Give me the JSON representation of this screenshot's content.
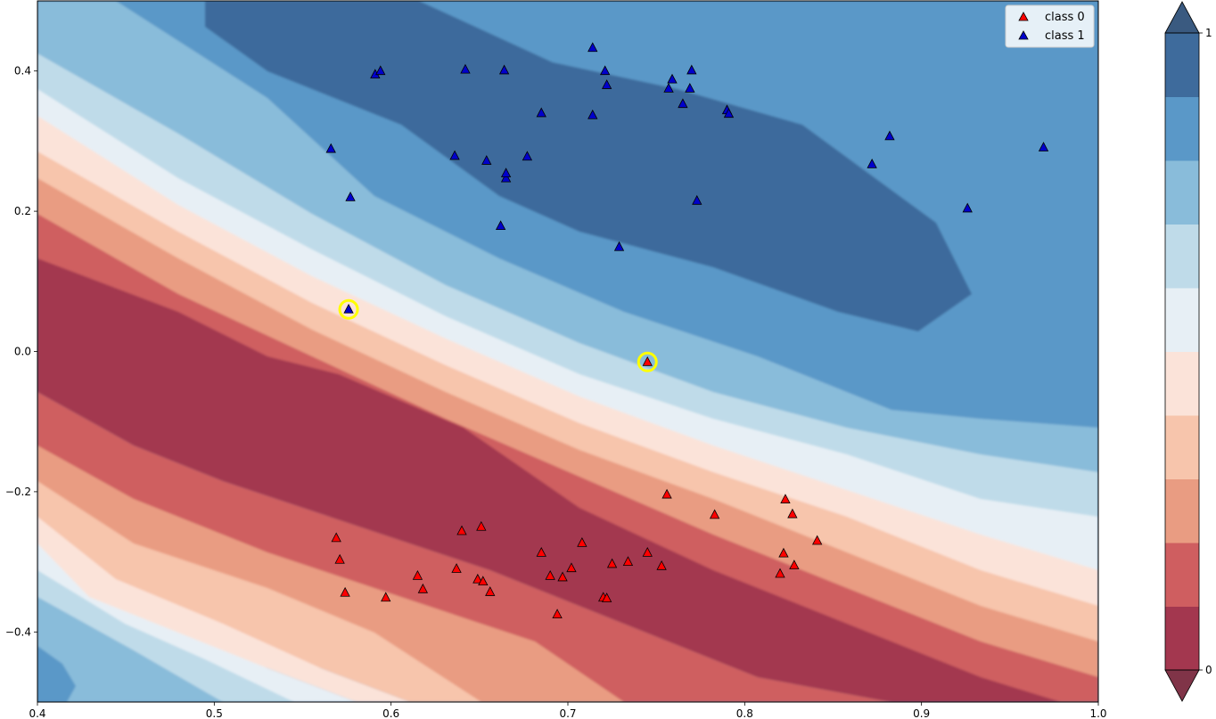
{
  "chart_data": {
    "type": "scatter",
    "title": "",
    "xlabel": "",
    "ylabel": "",
    "xlim": [
      0.4,
      1.0
    ],
    "ylim": [
      -0.5,
      0.5
    ],
    "grid": false,
    "x_ticks": [
      "0.4",
      "0.5",
      "0.6",
      "0.7",
      "0.8",
      "0.9",
      "1.0"
    ],
    "y_ticks": [
      "−0.4",
      "−0.2",
      "0.0",
      "0.2",
      "0.4"
    ],
    "x_tick_values": [
      0.4,
      0.5,
      0.6,
      0.7,
      0.8,
      0.9,
      1.0
    ],
    "y_tick_values": [
      -0.4,
      -0.2,
      0.0,
      0.2,
      0.4
    ],
    "background": "filled contour of predicted probability of class 1 (diverging red-blue, decision boundary falling from upper-left to lower-right)",
    "legend": {
      "placement": "top-right",
      "entries": [
        "class 0",
        "class 1"
      ]
    },
    "series": [
      {
        "name": "class 0",
        "marker": "triangle",
        "color": "#ff0000",
        "points": [
          [
            0.745,
            -0.015
          ],
          [
            0.756,
            -0.204
          ],
          [
            0.783,
            -0.233
          ],
          [
            0.823,
            -0.211
          ],
          [
            0.827,
            -0.232
          ],
          [
            0.841,
            -0.27
          ],
          [
            0.822,
            -0.288
          ],
          [
            0.828,
            -0.305
          ],
          [
            0.82,
            -0.317
          ],
          [
            0.569,
            -0.266
          ],
          [
            0.571,
            -0.297
          ],
          [
            0.574,
            -0.344
          ],
          [
            0.597,
            -0.351
          ],
          [
            0.615,
            -0.32
          ],
          [
            0.618,
            -0.339
          ],
          [
            0.637,
            -0.31
          ],
          [
            0.64,
            -0.256
          ],
          [
            0.651,
            -0.25
          ],
          [
            0.649,
            -0.325
          ],
          [
            0.652,
            -0.328
          ],
          [
            0.656,
            -0.343
          ],
          [
            0.685,
            -0.287
          ],
          [
            0.69,
            -0.32
          ],
          [
            0.694,
            -0.375
          ],
          [
            0.697,
            -0.322
          ],
          [
            0.702,
            -0.309
          ],
          [
            0.708,
            -0.273
          ],
          [
            0.72,
            -0.351
          ],
          [
            0.722,
            -0.352
          ],
          [
            0.725,
            -0.303
          ],
          [
            0.734,
            -0.3
          ],
          [
            0.745,
            -0.287
          ],
          [
            0.753,
            -0.306
          ]
        ]
      },
      {
        "name": "class 1",
        "marker": "triangle",
        "color": "#0000cc",
        "points": [
          [
            0.576,
            0.06
          ],
          [
            0.566,
            0.289
          ],
          [
            0.577,
            0.22
          ],
          [
            0.591,
            0.395
          ],
          [
            0.594,
            0.4
          ],
          [
            0.642,
            0.402
          ],
          [
            0.636,
            0.279
          ],
          [
            0.654,
            0.272
          ],
          [
            0.662,
            0.179
          ],
          [
            0.665,
            0.247
          ],
          [
            0.665,
            0.254
          ],
          [
            0.664,
            0.401
          ],
          [
            0.677,
            0.278
          ],
          [
            0.685,
            0.34
          ],
          [
            0.714,
            0.433
          ],
          [
            0.714,
            0.337
          ],
          [
            0.721,
            0.4
          ],
          [
            0.722,
            0.38
          ],
          [
            0.729,
            0.149
          ],
          [
            0.757,
            0.375
          ],
          [
            0.759,
            0.388
          ],
          [
            0.765,
            0.353
          ],
          [
            0.769,
            0.375
          ],
          [
            0.77,
            0.401
          ],
          [
            0.773,
            0.215
          ],
          [
            0.79,
            0.344
          ],
          [
            0.791,
            0.339
          ],
          [
            0.872,
            0.267
          ],
          [
            0.882,
            0.307
          ],
          [
            0.926,
            0.204
          ],
          [
            0.969,
            0.291
          ]
        ]
      }
    ],
    "highlighted_points": [
      [
        0.576,
        0.06
      ],
      [
        0.745,
        -0.015
      ]
    ],
    "colorbar": {
      "tick_labels": [
        "0",
        "1"
      ],
      "tick_values": [
        0,
        1
      ],
      "levels": 10,
      "extend": "both",
      "colors": [
        "#a3374f",
        "#cf5e60",
        "#e99c82",
        "#f7c5ac",
        "#fbe3d9",
        "#e7eff5",
        "#bfdbe9",
        "#89bcda",
        "#5a98c8",
        "#3e6b9c"
      ],
      "under_color": "#803448",
      "over_color": "#3a5a80"
    }
  }
}
